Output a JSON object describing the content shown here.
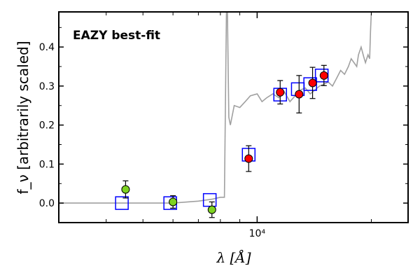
{
  "chart_data": {
    "type": "scatter",
    "annotation": {
      "text": "EAZY best-fit",
      "color": "#ff0000"
    },
    "xlabel": "λ [Å]",
    "ylabel": "f_ν [arbitrarily scaled]",
    "xscale": "log",
    "xlim": [
      3000,
      25000
    ],
    "ylim": [
      -0.05,
      0.49
    ],
    "xticks": [
      {
        "value": 10000,
        "label": "10⁴"
      }
    ],
    "yticks": [
      {
        "value": 0.0,
        "label": "0.0"
      },
      {
        "value": 0.1,
        "label": "0.1"
      },
      {
        "value": 0.2,
        "label": "0.2"
      },
      {
        "value": 0.3,
        "label": "0.3"
      },
      {
        "value": 0.4,
        "label": "0.4"
      }
    ],
    "grid": false,
    "sed_line": {
      "color": "#a0a0a0",
      "x": [
        3000,
        4000,
        5000,
        6000,
        7000,
        7600,
        8000,
        8200,
        8300,
        8350,
        8420,
        8500,
        8700,
        9000,
        9300,
        9600,
        10000,
        10300,
        10600,
        11000,
        11400,
        11800,
        12200,
        12600,
        13000,
        13400,
        13800,
        14200,
        14600,
        15000,
        15400,
        15800,
        16200,
        16600,
        17000,
        17400,
        17700,
        18000,
        18300,
        18500,
        18800,
        19100,
        19300,
        19600,
        19800,
        19900,
        20000
      ],
      "y": [
        0.0,
        0.0,
        0.0,
        0.0,
        0.005,
        0.01,
        0.015,
        0.015,
        0.49,
        0.49,
        0.22,
        0.2,
        0.25,
        0.245,
        0.26,
        0.275,
        0.28,
        0.26,
        0.27,
        0.28,
        0.27,
        0.285,
        0.26,
        0.275,
        0.29,
        0.295,
        0.28,
        0.29,
        0.3,
        0.305,
        0.31,
        0.3,
        0.32,
        0.34,
        0.33,
        0.35,
        0.37,
        0.36,
        0.35,
        0.38,
        0.4,
        0.375,
        0.36,
        0.38,
        0.37,
        0.44,
        0.49
      ]
    },
    "series": [
      {
        "marker": "square",
        "color": "#0000ff",
        "x": [
          4400,
          5900,
          7500,
          9500,
          11500,
          12800,
          13800,
          14800
        ],
        "y": [
          0.0,
          0.0,
          0.008,
          0.124,
          0.278,
          0.292,
          0.305,
          0.327
        ]
      },
      {
        "marker": "circle",
        "color": "#7ed321",
        "x": [
          4500,
          6000,
          7600
        ],
        "y": [
          0.035,
          0.003,
          -0.017
        ],
        "yerr": [
          0.022,
          0.016,
          0.02
        ]
      },
      {
        "marker": "circle",
        "color": "#ff0000",
        "x": [
          9500,
          11500,
          12900,
          14000,
          15000
        ],
        "y": [
          0.114,
          0.284,
          0.279,
          0.308,
          0.327
        ],
        "yerr": [
          0.033,
          0.03,
          0.048,
          0.04,
          0.026
        ]
      }
    ]
  }
}
